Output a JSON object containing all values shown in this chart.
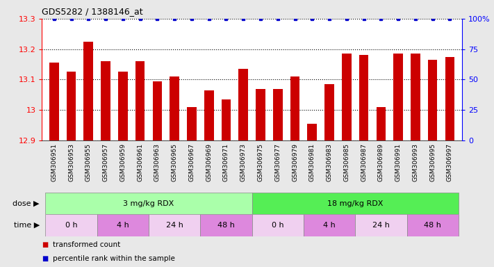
{
  "title": "GDS5282 / 1388146_at",
  "samples": [
    "GSM306951",
    "GSM306953",
    "GSM306955",
    "GSM306957",
    "GSM306959",
    "GSM306961",
    "GSM306963",
    "GSM306965",
    "GSM306967",
    "GSM306969",
    "GSM306971",
    "GSM306973",
    "GSM306975",
    "GSM306977",
    "GSM306979",
    "GSM306981",
    "GSM306983",
    "GSM306985",
    "GSM306987",
    "GSM306989",
    "GSM306991",
    "GSM306993",
    "GSM306995",
    "GSM306997"
  ],
  "values": [
    13.155,
    13.125,
    13.225,
    13.16,
    13.125,
    13.16,
    13.095,
    13.11,
    13.01,
    13.065,
    13.035,
    13.135,
    13.07,
    13.07,
    13.11,
    12.955,
    13.085,
    13.185,
    13.18,
    13.01,
    13.185,
    13.185,
    13.165,
    13.175
  ],
  "bar_color": "#cc0000",
  "percentile_color": "#0000cc",
  "ylim": [
    12.9,
    13.3
  ],
  "yticks_left": [
    12.9,
    13.0,
    13.1,
    13.2,
    13.3
  ],
  "ytick_labels_left": [
    "12.9",
    "13",
    "13.1",
    "13.2",
    "13.3"
  ],
  "yticks_right": [
    0,
    25,
    50,
    75,
    100
  ],
  "ytick_labels_right": [
    "0",
    "25",
    "50",
    "75",
    "100%"
  ],
  "bg_color": "#e8e8e8",
  "plot_bg_color": "#ffffff",
  "xtick_bg_color": "#d8d8d8",
  "dose_row": {
    "label": "dose",
    "groups": [
      {
        "label": "3 mg/kg RDX",
        "start": 0,
        "end": 12,
        "color": "#aaffaa"
      },
      {
        "label": "18 mg/kg RDX",
        "start": 12,
        "end": 24,
        "color": "#55ee55"
      }
    ]
  },
  "time_row": {
    "label": "time",
    "groups": [
      {
        "label": "0 h",
        "start": 0,
        "end": 3,
        "color": "#f0d0f0"
      },
      {
        "label": "4 h",
        "start": 3,
        "end": 6,
        "color": "#dd88dd"
      },
      {
        "label": "24 h",
        "start": 6,
        "end": 9,
        "color": "#f0d0f0"
      },
      {
        "label": "48 h",
        "start": 9,
        "end": 12,
        "color": "#dd88dd"
      },
      {
        "label": "0 h",
        "start": 12,
        "end": 15,
        "color": "#f0d0f0"
      },
      {
        "label": "4 h",
        "start": 15,
        "end": 18,
        "color": "#dd88dd"
      },
      {
        "label": "24 h",
        "start": 18,
        "end": 21,
        "color": "#f0d0f0"
      },
      {
        "label": "48 h",
        "start": 21,
        "end": 24,
        "color": "#dd88dd"
      }
    ]
  },
  "legend": [
    {
      "label": "transformed count",
      "color": "#cc0000"
    },
    {
      "label": "percentile rank within the sample",
      "color": "#0000cc"
    }
  ]
}
